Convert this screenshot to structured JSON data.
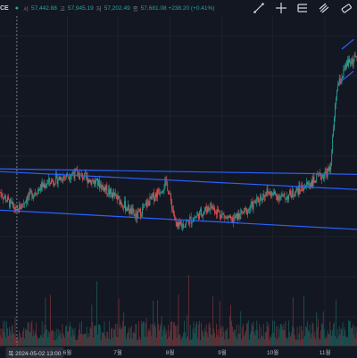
{
  "header": {
    "symbol_tail": "CE",
    "live_status": "●",
    "ohlc": [
      {
        "label": "시",
        "value": "57,442.88"
      },
      {
        "label": "고",
        "value": "57,945.19"
      },
      {
        "label": "저",
        "value": "57,202.49"
      },
      {
        "label": "종",
        "value": "57,681.08 +238.20 (+0.41%)"
      }
    ],
    "colors": {
      "up": "#26a69a",
      "down": "#ef5350",
      "trendline": "#2962ff",
      "background": "#131722"
    }
  },
  "toolbar": [
    {
      "name": "trendline-tool-icon",
      "icon": "diagonal-line"
    },
    {
      "name": "crosshair-tool-icon",
      "icon": "crosshair"
    },
    {
      "name": "pitchfork-tool-icon",
      "icon": "fork"
    },
    {
      "name": "channel-tool-icon",
      "icon": "parallel-lines"
    },
    {
      "name": "eraser-tool-icon",
      "icon": "eraser"
    }
  ],
  "time_axis": {
    "highlighted": "목 2024-05-02   13:00",
    "ticks": [
      "6월",
      "7월",
      "8월",
      "9월",
      "10월",
      "11월"
    ]
  },
  "chart_data": {
    "type": "candlestick",
    "ylim": [
      52000,
      76000
    ],
    "x_domain": [
      "2024-04-22",
      "2024-11-20"
    ],
    "month_starts": [
      "2024-06-01",
      "2024-07-01",
      "2024-08-01",
      "2024-09-01",
      "2024-10-01",
      "2024-11-01"
    ],
    "price_path_points": [
      [
        "2024-04-22",
        63200
      ],
      [
        "2024-05-02",
        61800
      ],
      [
        "2024-05-08",
        62800
      ],
      [
        "2024-05-20",
        63900
      ],
      [
        "2024-06-05",
        64600
      ],
      [
        "2024-06-20",
        63800
      ],
      [
        "2024-07-02",
        62600
      ],
      [
        "2024-07-12",
        61400
      ],
      [
        "2024-07-20",
        62600
      ],
      [
        "2024-07-30",
        63900
      ],
      [
        "2024-08-05",
        60600
      ],
      [
        "2024-08-15",
        61300
      ],
      [
        "2024-08-25",
        62200
      ],
      [
        "2024-09-06",
        61100
      ],
      [
        "2024-09-16",
        61900
      ],
      [
        "2024-09-27",
        63200
      ],
      [
        "2024-10-08",
        62800
      ],
      [
        "2024-10-18",
        63500
      ],
      [
        "2024-10-29",
        64300
      ],
      [
        "2024-11-04",
        64800
      ],
      [
        "2024-11-08",
        70700
      ],
      [
        "2024-11-14",
        72500
      ],
      [
        "2024-11-20",
        73000
      ]
    ],
    "trendlines": [
      {
        "name": "channel-upper",
        "from": [
          "2024-04-22",
          64900
        ],
        "to": [
          "2024-11-20",
          64500
        ]
      },
      {
        "name": "channel-middle",
        "from": [
          "2024-04-22",
          64700
        ],
        "to": [
          "2024-11-20",
          63400
        ]
      },
      {
        "name": "channel-lower",
        "from": [
          "2024-04-22",
          61900
        ],
        "to": [
          "2024-11-20",
          60500
        ]
      },
      {
        "name": "breakout-upper",
        "from": [
          "2024-11-11",
          73600
        ],
        "to": [
          "2024-11-18",
          74300
        ]
      },
      {
        "name": "breakout-lower",
        "from": [
          "2024-11-11",
          71300
        ],
        "to": [
          "2024-11-18",
          72000
        ]
      }
    ],
    "volume_ylim": [
      0,
      100
    ]
  }
}
